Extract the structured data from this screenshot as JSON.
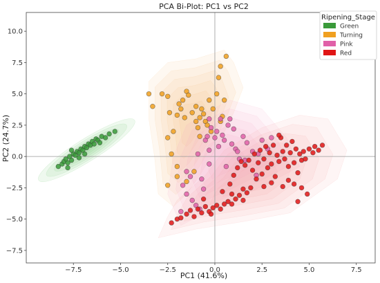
{
  "chart_data": {
    "type": "scatter",
    "title": "PCA Bi-Plot: PC1 vs PC2",
    "xlabel": "PC1 (41.6%)",
    "ylabel": "PC2 (24.7%)",
    "xlim": [
      -10,
      8.5
    ],
    "ylim": [
      -8.5,
      11.5
    ],
    "x_ticks": [
      -7.5,
      -5.0,
      -2.5,
      0.0,
      2.5,
      5.0,
      7.5
    ],
    "y_ticks": [
      -7.5,
      -5.0,
      -2.5,
      0.0,
      2.5,
      5.0,
      7.5,
      10.0
    ],
    "x_tick_labels": [
      "−7.5",
      "−5.0",
      "−2.5",
      "0.0",
      "2.5",
      "5.0",
      "7.5"
    ],
    "y_tick_labels": [
      "−7.5",
      "−5.0",
      "−2.5",
      "0.0",
      "2.5",
      "5.0",
      "7.5",
      "10.0"
    ],
    "grid": false,
    "reference_lines": {
      "x": 0,
      "y": 0
    },
    "legend": {
      "title": "Ripening_Stage",
      "placement": "top-right",
      "entries": [
        "Green",
        "Turning",
        "Pink",
        "Red"
      ]
    },
    "series": [
      {
        "name": "Green",
        "color": "#3a9a3a",
        "points": [
          [
            -8.3,
            -0.8
          ],
          [
            -8.1,
            -0.6
          ],
          [
            -8.0,
            -0.4
          ],
          [
            -7.8,
            -0.5
          ],
          [
            -7.9,
            -0.2
          ],
          [
            -7.7,
            0.0
          ],
          [
            -7.6,
            -0.3
          ],
          [
            -7.5,
            0.2
          ],
          [
            -7.4,
            0.1
          ],
          [
            -7.3,
            0.4
          ],
          [
            -7.2,
            0.3
          ],
          [
            -7.1,
            0.6
          ],
          [
            -7.0,
            0.5
          ],
          [
            -6.9,
            0.8
          ],
          [
            -6.8,
            0.7
          ],
          [
            -6.7,
            1.0
          ],
          [
            -6.6,
            0.9
          ],
          [
            -6.5,
            1.2
          ],
          [
            -6.4,
            1.0
          ],
          [
            -6.3,
            1.4
          ],
          [
            -6.2,
            1.3
          ],
          [
            -6.0,
            1.6
          ],
          [
            -5.8,
            1.5
          ],
          [
            -5.6,
            1.8
          ],
          [
            -5.3,
            2.0
          ],
          [
            -7.2,
            -0.1
          ],
          [
            -7.6,
            0.5
          ],
          [
            -6.9,
            0.2
          ],
          [
            -6.1,
            1.1
          ],
          [
            -7.8,
            -0.9
          ]
        ]
      },
      {
        "name": "Turning",
        "color": "#f0a020",
        "points": [
          [
            -3.5,
            5.0
          ],
          [
            -3.3,
            4.0
          ],
          [
            -2.8,
            5.0
          ],
          [
            -2.5,
            4.8
          ],
          [
            -2.4,
            3.5
          ],
          [
            -2.5,
            1.5
          ],
          [
            -2.2,
            2.0
          ],
          [
            -2.0,
            3.3
          ],
          [
            -1.9,
            4.2
          ],
          [
            -1.7,
            4.5
          ],
          [
            -1.5,
            5.2
          ],
          [
            -1.4,
            4.9
          ],
          [
            -1.2,
            3.5
          ],
          [
            -1.0,
            4.0
          ],
          [
            -0.9,
            2.3
          ],
          [
            -0.8,
            3.1
          ],
          [
            -0.7,
            3.8
          ],
          [
            -0.6,
            3.4
          ],
          [
            -0.5,
            2.8
          ],
          [
            -0.4,
            2.5
          ],
          [
            -0.3,
            4.5
          ],
          [
            -0.2,
            2.0
          ],
          [
            -0.1,
            3.8
          ],
          [
            0.1,
            5.0
          ],
          [
            0.2,
            6.3
          ],
          [
            0.3,
            2.8
          ],
          [
            0.4,
            3.2
          ],
          [
            0.5,
            4.5
          ],
          [
            0.6,
            8.0
          ],
          [
            0.3,
            7.2
          ],
          [
            -1.8,
            3.8
          ],
          [
            -2.3,
            0.2
          ],
          [
            -2.0,
            -0.8
          ],
          [
            -2.5,
            -2.3
          ],
          [
            -2.0,
            -1.6
          ],
          [
            -1.5,
            -2.0
          ],
          [
            -1.1,
            -1.2
          ],
          [
            -0.8,
            1.6
          ],
          [
            -1.0,
            2.8
          ],
          [
            -1.6,
            3.1
          ]
        ]
      },
      {
        "name": "Pink",
        "color": "#e060a8",
        "points": [
          [
            -1.7,
            -2.3
          ],
          [
            -1.5,
            -3.0
          ],
          [
            -1.3,
            -1.6
          ],
          [
            -1.2,
            -3.5
          ],
          [
            -1.0,
            -3.9
          ],
          [
            -0.8,
            -4.2
          ],
          [
            -0.7,
            -1.8
          ],
          [
            -0.6,
            -2.6
          ],
          [
            -0.5,
            1.3
          ],
          [
            -0.4,
            1.6
          ],
          [
            -0.3,
            0.5
          ],
          [
            -0.2,
            2.3
          ],
          [
            -0.3,
            3.0
          ],
          [
            0.0,
            1.5
          ],
          [
            0.1,
            2.0
          ],
          [
            0.2,
            0.8
          ],
          [
            0.3,
            3.0
          ],
          [
            0.4,
            1.7
          ],
          [
            0.5,
            1.3
          ],
          [
            0.7,
            2.5
          ],
          [
            0.8,
            3.0
          ],
          [
            1.0,
            2.2
          ],
          [
            1.1,
            0.6
          ],
          [
            1.2,
            0.4
          ],
          [
            1.3,
            -0.2
          ],
          [
            1.5,
            1.6
          ],
          [
            1.7,
            1.1
          ],
          [
            2.0,
            0.4
          ],
          [
            2.2,
            -1.5
          ],
          [
            2.3,
            0.2
          ],
          [
            2.5,
            1.3
          ],
          [
            3.0,
            1.5
          ],
          [
            -1.8,
            -4.4
          ],
          [
            -0.9,
            0.2
          ],
          [
            -1.5,
            -1.2
          ],
          [
            0.9,
            1.0
          ],
          [
            -0.3,
            -0.6
          ],
          [
            0.6,
            -0.8
          ],
          [
            1.6,
            -0.3
          ],
          [
            2.8,
            0.6
          ]
        ]
      },
      {
        "name": "Red",
        "color": "#e01515",
        "points": [
          [
            -2.3,
            -5.3
          ],
          [
            -2.0,
            -5.0
          ],
          [
            -1.8,
            -4.9
          ],
          [
            -1.5,
            -4.6
          ],
          [
            -1.3,
            -4.3
          ],
          [
            -1.1,
            -4.8
          ],
          [
            -0.9,
            -4.2
          ],
          [
            -0.7,
            -4.5
          ],
          [
            -0.5,
            -4.0
          ],
          [
            -0.3,
            -4.4
          ],
          [
            -0.1,
            -4.1
          ],
          [
            0.1,
            -3.9
          ],
          [
            0.3,
            -4.2
          ],
          [
            0.5,
            -3.8
          ],
          [
            0.7,
            -3.6
          ],
          [
            0.9,
            -3.8
          ],
          [
            1.1,
            -3.4
          ],
          [
            1.3,
            -3.1
          ],
          [
            1.5,
            -3.5
          ],
          [
            1.7,
            -2.9
          ],
          [
            1.9,
            -2.5
          ],
          [
            0.8,
            -2.2
          ],
          [
            1.0,
            -1.5
          ],
          [
            1.2,
            -0.9
          ],
          [
            1.4,
            -0.4
          ],
          [
            1.6,
            -0.7
          ],
          [
            1.8,
            -0.3
          ],
          [
            2.0,
            -1.1
          ],
          [
            2.1,
            0.2
          ],
          [
            2.3,
            -0.5
          ],
          [
            2.4,
            0.5
          ],
          [
            2.5,
            -1.4
          ],
          [
            2.6,
            -0.2
          ],
          [
            2.7,
            0.8
          ],
          [
            2.8,
            -0.9
          ],
          [
            2.9,
            0.3
          ],
          [
            3.0,
            -0.6
          ],
          [
            3.1,
            0.9
          ],
          [
            3.2,
            -1.6
          ],
          [
            3.3,
            0.1
          ],
          [
            3.4,
            -0.4
          ],
          [
            3.5,
            1.5
          ],
          [
            3.6,
            0.4
          ],
          [
            3.7,
            -0.2
          ],
          [
            3.8,
            0.9
          ],
          [
            3.9,
            -0.8
          ],
          [
            4.0,
            0.3
          ],
          [
            4.1,
            1.2
          ],
          [
            4.2,
            -0.5
          ],
          [
            4.3,
            0.6
          ],
          [
            4.4,
            -1.3
          ],
          [
            4.5,
            0.2
          ],
          [
            4.6,
            -0.3
          ],
          [
            4.7,
            0.4
          ],
          [
            4.8,
            -0.2
          ],
          [
            5.0,
            0.6
          ],
          [
            5.2,
            0.3
          ],
          [
            5.3,
            0.8
          ],
          [
            5.5,
            0.5
          ],
          [
            5.7,
            0.9
          ],
          [
            3.6,
            -2.4
          ],
          [
            4.2,
            -2.2
          ],
          [
            4.6,
            -2.5
          ],
          [
            4.9,
            -3.0
          ],
          [
            4.4,
            -3.6
          ],
          [
            3.9,
            -1.9
          ],
          [
            3.0,
            -2.1
          ],
          [
            2.6,
            -2.4
          ],
          [
            1.5,
            -2.6
          ],
          [
            0.9,
            -3.0
          ],
          [
            -0.2,
            -4.6
          ],
          [
            -0.6,
            -3.4
          ],
          [
            0.4,
            -2.8
          ],
          [
            3.4,
            1.7
          ],
          [
            2.2,
            -1.8
          ]
        ]
      }
    ],
    "density_regions": [
      {
        "name": "Green",
        "color": "#7fd07f",
        "center": [
          -6.8,
          0.5
        ],
        "radii": [
          3.0,
          0.9
        ],
        "angle_deg": 32,
        "levels": 6
      },
      {
        "name": "Turning",
        "color": "#f5c080",
        "polygon": [
          [
            -3.5,
            6.0
          ],
          [
            -2.5,
            7.5
          ],
          [
            -1.0,
            7.8
          ],
          [
            0.5,
            8.5
          ],
          [
            1.0,
            7.5
          ],
          [
            1.5,
            5.5
          ],
          [
            1.0,
            3.5
          ],
          [
            0.2,
            1.0
          ],
          [
            -0.8,
            -1.5
          ],
          [
            -1.5,
            -3.0
          ],
          [
            -2.2,
            -4.0
          ],
          [
            -3.0,
            -3.0
          ],
          [
            -3.2,
            0.0
          ],
          [
            -3.5,
            3.0
          ]
        ],
        "levels": 6
      },
      {
        "name": "Pink",
        "color": "#f8a8c8",
        "polygon": [
          [
            -1.8,
            -5.5
          ],
          [
            -0.5,
            -4.5
          ],
          [
            1.0,
            -3.5
          ],
          [
            3.0,
            -2.0
          ],
          [
            4.5,
            -0.8
          ],
          [
            3.8,
            1.5
          ],
          [
            2.5,
            3.8
          ],
          [
            0.8,
            4.5
          ],
          [
            -0.5,
            3.5
          ],
          [
            -1.5,
            2.5
          ],
          [
            -2.2,
            0.0
          ],
          [
            -2.5,
            -3.0
          ]
        ],
        "levels": 6
      },
      {
        "name": "Red",
        "color": "#f8a0a0",
        "polygon": [
          [
            -3.0,
            -6.5
          ],
          [
            -1.0,
            -5.8
          ],
          [
            1.5,
            -5.2
          ],
          [
            4.0,
            -4.5
          ],
          [
            6.5,
            -1.8
          ],
          [
            7.0,
            0.5
          ],
          [
            6.0,
            3.0
          ],
          [
            4.5,
            3.3
          ],
          [
            2.5,
            2.3
          ],
          [
            0.5,
            0.5
          ],
          [
            -0.5,
            -1.5
          ],
          [
            -2.0,
            -3.5
          ],
          [
            -2.5,
            -4.8
          ]
        ],
        "levels": 6
      }
    ]
  }
}
